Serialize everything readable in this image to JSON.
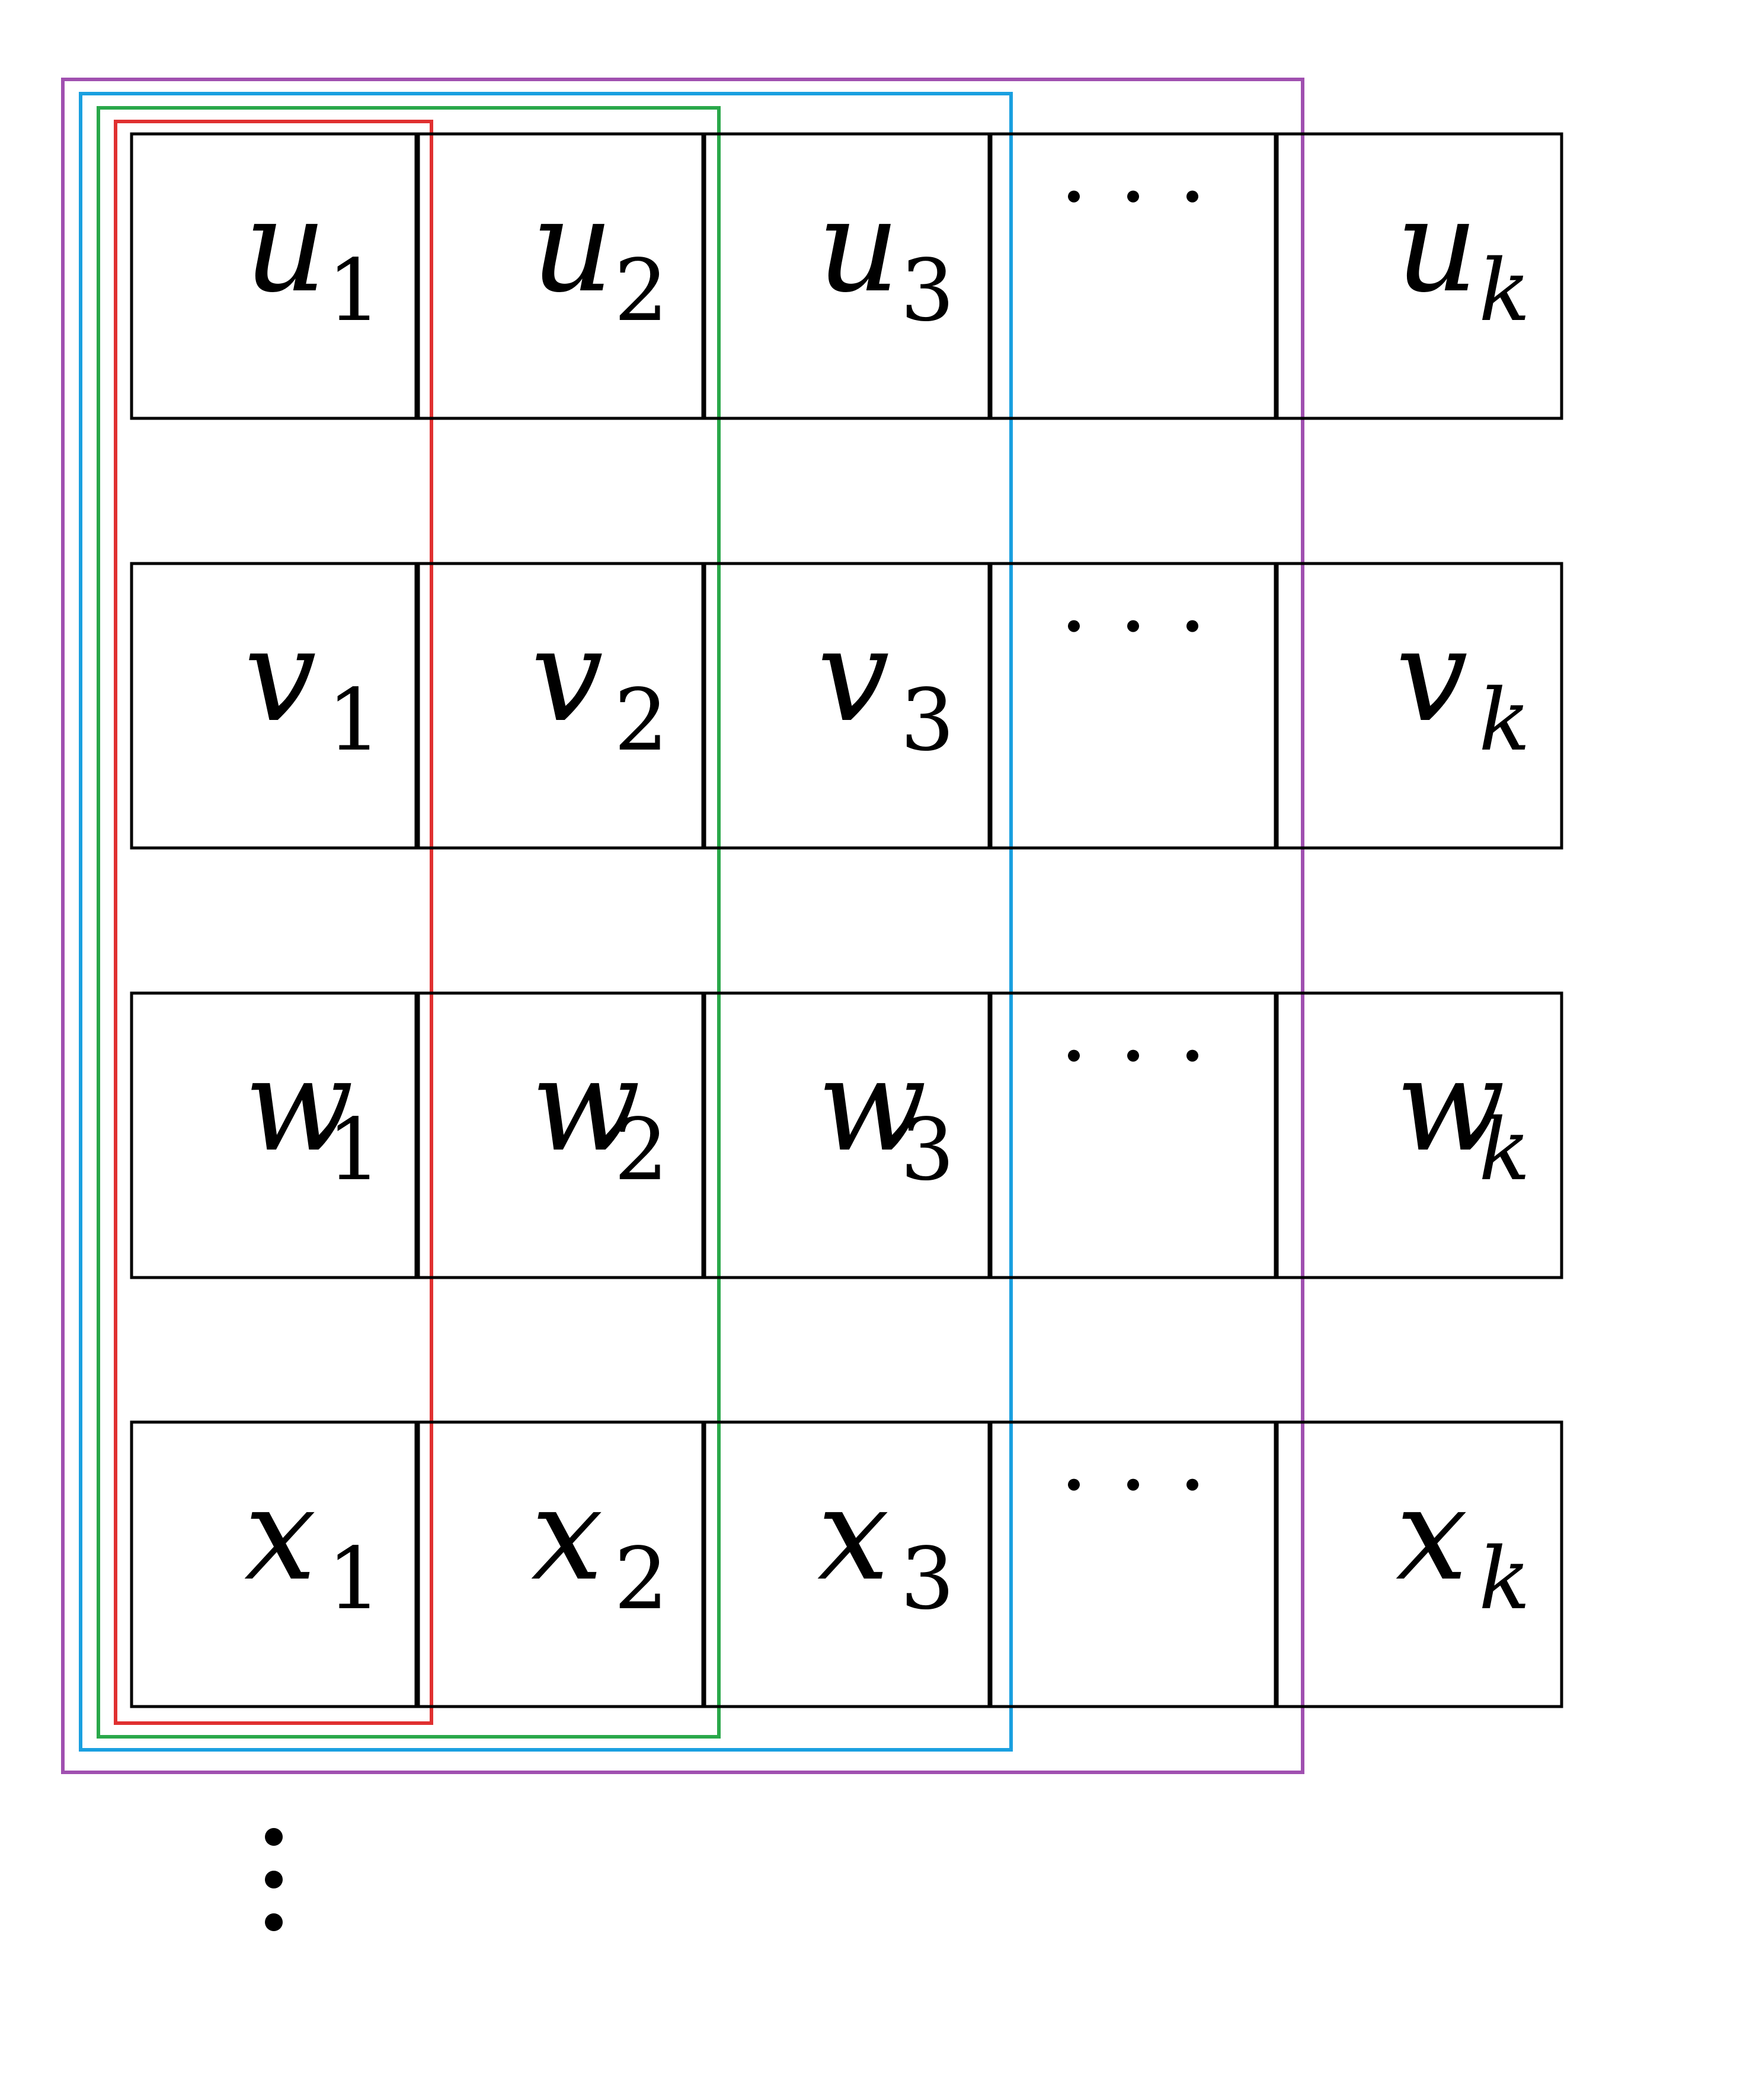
{
  "diagram": {
    "rows": [
      {
        "symbol": "u",
        "subscripts": [
          "1",
          "2",
          "3",
          "",
          "k"
        ]
      },
      {
        "symbol": "v",
        "subscripts": [
          "1",
          "2",
          "3",
          "",
          "k"
        ]
      },
      {
        "symbol": "w",
        "subscripts": [
          "1",
          "2",
          "3",
          "",
          "k"
        ]
      },
      {
        "symbol": "x",
        "subscripts": [
          "1",
          "2",
          "3",
          "",
          "k"
        ]
      }
    ],
    "ellipsis_column_index": 3,
    "groups": [
      {
        "color": "#e03030",
        "columns_covered": 1
      },
      {
        "color": "#2aa84a",
        "columns_covered": 2
      },
      {
        "color": "#1aa0e0",
        "columns_covered": 3
      },
      {
        "color": "#a050b0",
        "columns_covered": 4
      }
    ],
    "continuation": "vertical-ellipsis"
  }
}
